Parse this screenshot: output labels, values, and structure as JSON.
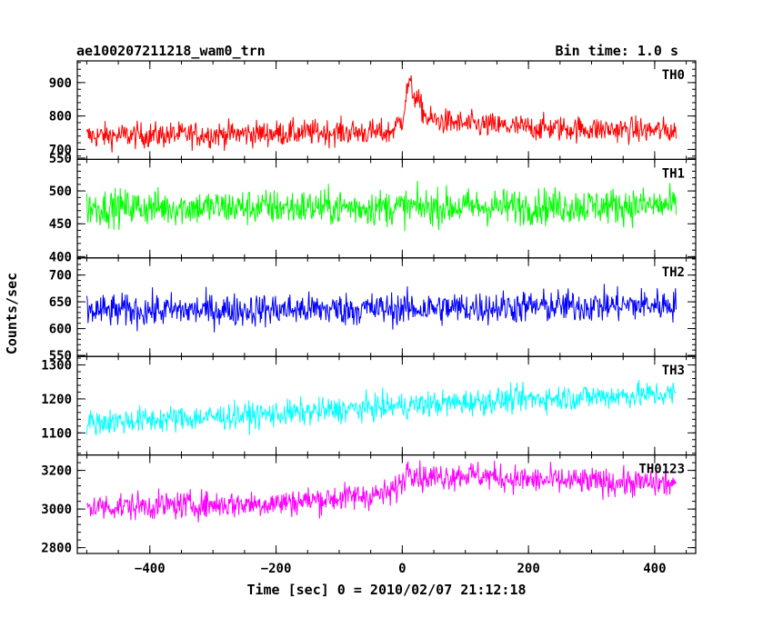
{
  "chart_data": {
    "type": "line",
    "title_left": "ae100207211218_wam0_trn",
    "title_right": "Bin time: 1.0 s",
    "xlabel": "Time [sec] 0 = 2010/02/07 21:12:18",
    "ylabel": "Counts/sec",
    "x_ticks": [
      "−400",
      "−200",
      "0",
      "200",
      "400"
    ],
    "x_tick_values": [
      -400,
      -200,
      0,
      200,
      400
    ],
    "xlim": [
      -515,
      465
    ],
    "x_range_data": [
      -500,
      434
    ],
    "grid": false,
    "panels": [
      {
        "name": "TH0",
        "color": "#ff0000",
        "ylim": [
          670,
          965
        ],
        "y_ticks": [
          "700",
          "800",
          "900"
        ],
        "y_tick_values": [
          700,
          800,
          900
        ],
        "baseline": [
          [
            -500,
            740
          ],
          [
            -300,
            745
          ],
          [
            -100,
            752
          ],
          [
            -20,
            750
          ],
          [
            0,
            790
          ],
          [
            10,
            900
          ],
          [
            20,
            860
          ],
          [
            40,
            790
          ],
          [
            100,
            775
          ],
          [
            200,
            765
          ],
          [
            434,
            755
          ]
        ],
        "noise_amplitude": 35
      },
      {
        "name": "TH1",
        "color": "#00ff00",
        "ylim": [
          398,
          548
        ],
        "y_ticks": [
          "400",
          "450",
          "500",
          "550"
        ],
        "y_tick_values": [
          400,
          450,
          500,
          550
        ],
        "baseline": [
          [
            -500,
            475
          ],
          [
            0,
            475
          ],
          [
            434,
            478
          ]
        ],
        "noise_amplitude": 25
      },
      {
        "name": "TH2",
        "color": "#0000ff",
        "ylim": [
          548,
          732
        ],
        "y_ticks": [
          "550",
          "600",
          "650",
          "700"
        ],
        "y_tick_values": [
          550,
          600,
          650,
          700
        ],
        "baseline": [
          [
            -500,
            633
          ],
          [
            0,
            637
          ],
          [
            434,
            645
          ]
        ],
        "noise_amplitude": 28
      },
      {
        "name": "TH3",
        "color": "#00ffff",
        "ylim": [
          1035,
          1325
        ],
        "y_ticks": [
          "1100",
          "1200",
          "1300"
        ],
        "y_tick_values": [
          1100,
          1200,
          1300
        ],
        "baseline": [
          [
            -500,
            1130
          ],
          [
            -200,
            1155
          ],
          [
            0,
            1180
          ],
          [
            200,
            1200
          ],
          [
            434,
            1215
          ]
        ],
        "noise_amplitude": 35
      },
      {
        "name": "TH0123",
        "color": "#ff00ff",
        "ylim": [
          2770,
          3280
        ],
        "y_ticks": [
          "2800",
          "3000",
          "3200"
        ],
        "y_tick_values": [
          2800,
          3000,
          3200
        ],
        "baseline": [
          [
            -500,
            3010
          ],
          [
            -200,
            3030
          ],
          [
            -20,
            3080
          ],
          [
            0,
            3140
          ],
          [
            10,
            3220
          ],
          [
            30,
            3160
          ],
          [
            100,
            3180
          ],
          [
            200,
            3150
          ],
          [
            434,
            3130
          ]
        ],
        "noise_amplitude": 65
      }
    ]
  }
}
